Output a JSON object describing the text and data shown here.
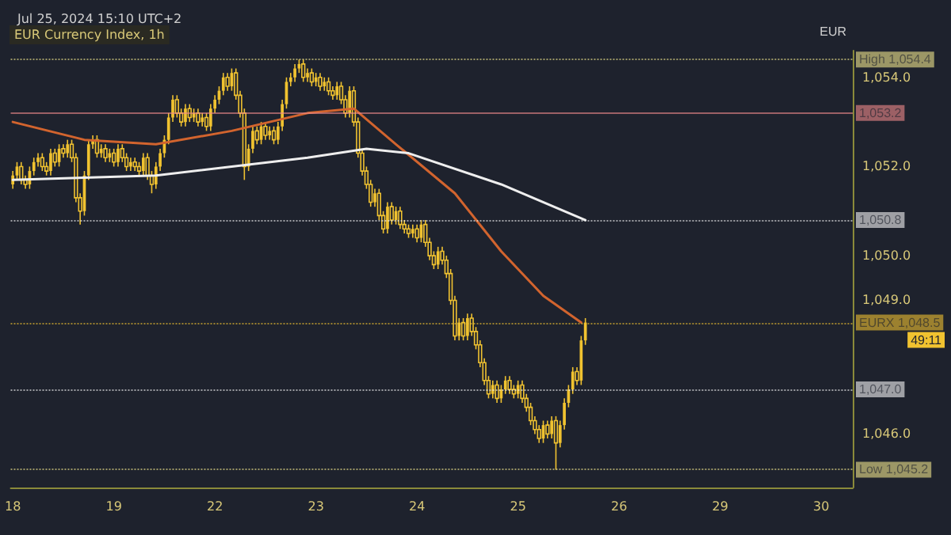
{
  "chart_data": {
    "type": "candlestick",
    "title": "EUR Currency Index, 1h",
    "subtitle": "Jul 25, 2024 15:10 UTC+2",
    "ylabel": "EUR",
    "categories": [
      "18",
      null,
      null,
      null,
      null,
      null,
      null,
      null,
      null,
      null,
      null,
      null,
      null,
      null,
      null,
      null,
      null,
      null,
      null,
      null,
      null,
      null,
      null,
      null,
      "19",
      null,
      null,
      null,
      null,
      null,
      null,
      null,
      null,
      null,
      null,
      null,
      null,
      null,
      null,
      null,
      null,
      null,
      null,
      null,
      null,
      null,
      null,
      null,
      "22",
      null,
      null,
      null,
      null,
      null,
      null,
      null,
      null,
      null,
      null,
      null,
      null,
      null,
      null,
      null,
      null,
      null,
      null,
      null,
      null,
      null,
      null,
      null,
      "23",
      null,
      null,
      null,
      null,
      null,
      null,
      null,
      null,
      null,
      null,
      null,
      null,
      null,
      null,
      null,
      null,
      null,
      null,
      null,
      null,
      null,
      null,
      null,
      "24",
      null,
      null,
      null,
      null,
      null,
      null,
      null,
      null,
      null,
      null,
      null,
      null,
      null,
      null,
      null,
      null,
      null,
      null,
      null,
      null,
      null,
      null,
      null,
      "25",
      null,
      null,
      null,
      null,
      null,
      null,
      null,
      null,
      null,
      null,
      null,
      null,
      null,
      null,
      null,
      null,
      null,
      null,
      null,
      null,
      null,
      null,
      null,
      "26",
      null,
      null,
      null,
      null,
      null,
      null,
      null,
      null,
      null,
      null,
      null,
      null,
      null,
      null,
      null,
      null,
      null,
      null,
      null,
      null,
      null,
      null,
      null,
      "29",
      null,
      null,
      null,
      null,
      null,
      null,
      null,
      null,
      null,
      null,
      null,
      null,
      null,
      null,
      null,
      null,
      null,
      null,
      null,
      null,
      null,
      null,
      null,
      "30",
      null,
      null,
      null,
      null,
      null,
      null,
      null
    ],
    "color": "#f0c230",
    "ohlc": [
      [
        1051.6,
        1051.9,
        1051.5,
        1051.8
      ],
      [
        1051.8,
        1052.1,
        1051.7,
        1052.0
      ],
      [
        1052.0,
        1052.1,
        1051.6,
        1051.7
      ],
      [
        1051.7,
        1051.8,
        1051.5,
        1051.6
      ],
      [
        1051.6,
        1052.0,
        1051.5,
        1051.9
      ],
      [
        1051.9,
        1052.2,
        1051.8,
        1052.1
      ],
      [
        1052.1,
        1052.3,
        1052.0,
        1052.2
      ],
      [
        1052.2,
        1052.3,
        1051.9,
        1052.0
      ],
      [
        1052.0,
        1052.1,
        1051.8,
        1051.9
      ],
      [
        1051.9,
        1052.4,
        1051.8,
        1052.3
      ],
      [
        1052.3,
        1052.4,
        1052.0,
        1052.1
      ],
      [
        1052.1,
        1052.5,
        1052.0,
        1052.4
      ],
      [
        1052.4,
        1052.5,
        1052.2,
        1052.3
      ],
      [
        1052.3,
        1052.6,
        1052.2,
        1052.5
      ],
      [
        1052.5,
        1052.6,
        1052.1,
        1052.2
      ],
      [
        1052.2,
        1052.3,
        1051.2,
        1051.3
      ],
      [
        1051.3,
        1051.4,
        1050.7,
        1051.0
      ],
      [
        1051.0,
        1051.9,
        1050.9,
        1051.8
      ],
      [
        1051.8,
        1052.6,
        1051.7,
        1052.5
      ],
      [
        1052.5,
        1052.7,
        1052.4,
        1052.6
      ],
      [
        1052.6,
        1052.7,
        1052.2,
        1052.3
      ],
      [
        1052.3,
        1052.5,
        1052.2,
        1052.4
      ],
      [
        1052.4,
        1052.5,
        1052.1,
        1052.2
      ],
      [
        1052.2,
        1052.4,
        1052.1,
        1052.3
      ],
      [
        1052.3,
        1052.4,
        1052.0,
        1052.1
      ],
      [
        1052.1,
        1052.5,
        1052.0,
        1052.4
      ],
      [
        1052.4,
        1052.5,
        1052.1,
        1052.2
      ],
      [
        1052.2,
        1052.3,
        1051.9,
        1052.0
      ],
      [
        1052.0,
        1052.2,
        1051.9,
        1052.1
      ],
      [
        1052.1,
        1052.2,
        1051.9,
        1052.0
      ],
      [
        1052.0,
        1052.1,
        1051.8,
        1051.9
      ],
      [
        1051.9,
        1052.3,
        1051.8,
        1052.2
      ],
      [
        1052.2,
        1052.3,
        1051.7,
        1051.8
      ],
      [
        1051.8,
        1051.9,
        1051.4,
        1051.6
      ],
      [
        1051.6,
        1052.1,
        1051.5,
        1052.0
      ],
      [
        1052.0,
        1052.4,
        1051.9,
        1052.3
      ],
      [
        1052.3,
        1052.7,
        1052.2,
        1052.6
      ],
      [
        1052.6,
        1053.2,
        1052.5,
        1053.1
      ],
      [
        1053.1,
        1053.6,
        1053.0,
        1053.5
      ],
      [
        1053.5,
        1053.6,
        1053.1,
        1053.2
      ],
      [
        1053.2,
        1053.3,
        1052.9,
        1053.0
      ],
      [
        1053.0,
        1053.4,
        1052.9,
        1053.3
      ],
      [
        1053.3,
        1053.4,
        1053.0,
        1053.1
      ],
      [
        1053.1,
        1053.3,
        1053.0,
        1053.2
      ],
      [
        1053.2,
        1053.3,
        1052.9,
        1053.0
      ],
      [
        1053.0,
        1053.2,
        1052.9,
        1053.1
      ],
      [
        1053.1,
        1053.2,
        1052.8,
        1052.9
      ],
      [
        1052.9,
        1053.4,
        1052.8,
        1053.3
      ],
      [
        1053.3,
        1053.6,
        1053.2,
        1053.5
      ],
      [
        1053.5,
        1053.8,
        1053.4,
        1053.7
      ],
      [
        1053.7,
        1054.1,
        1053.6,
        1054.0
      ],
      [
        1054.0,
        1054.1,
        1053.7,
        1053.8
      ],
      [
        1053.8,
        1054.2,
        1053.7,
        1054.1
      ],
      [
        1054.1,
        1054.2,
        1053.5,
        1053.6
      ],
      [
        1053.6,
        1053.7,
        1053.1,
        1053.2
      ],
      [
        1053.2,
        1053.3,
        1051.7,
        1052.0
      ],
      [
        1052.0,
        1052.5,
        1051.9,
        1052.4
      ],
      [
        1052.4,
        1052.9,
        1052.3,
        1052.8
      ],
      [
        1052.8,
        1052.9,
        1052.5,
        1052.6
      ],
      [
        1052.6,
        1053.0,
        1052.5,
        1052.9
      ],
      [
        1052.9,
        1053.0,
        1052.6,
        1052.7
      ],
      [
        1052.7,
        1052.9,
        1052.6,
        1052.8
      ],
      [
        1052.8,
        1052.9,
        1052.5,
        1052.6
      ],
      [
        1052.6,
        1053.0,
        1052.5,
        1052.9
      ],
      [
        1052.9,
        1053.5,
        1052.8,
        1053.4
      ],
      [
        1053.4,
        1054.0,
        1053.3,
        1053.9
      ],
      [
        1053.9,
        1054.1,
        1053.8,
        1054.0
      ],
      [
        1054.0,
        1054.3,
        1053.9,
        1054.2
      ],
      [
        1054.2,
        1054.4,
        1054.1,
        1054.3
      ],
      [
        1054.3,
        1054.4,
        1053.9,
        1054.0
      ],
      [
        1054.0,
        1054.2,
        1053.9,
        1054.1
      ],
      [
        1054.1,
        1054.2,
        1053.8,
        1053.9
      ],
      [
        1053.9,
        1054.1,
        1053.8,
        1054.0
      ],
      [
        1054.0,
        1054.1,
        1053.7,
        1053.8
      ],
      [
        1053.8,
        1054.0,
        1053.7,
        1053.9
      ],
      [
        1053.9,
        1054.0,
        1053.6,
        1053.7
      ],
      [
        1053.7,
        1053.8,
        1053.5,
        1053.6
      ],
      [
        1053.6,
        1053.9,
        1053.5,
        1053.8
      ],
      [
        1053.8,
        1053.9,
        1053.4,
        1053.5
      ],
      [
        1053.5,
        1053.6,
        1053.1,
        1053.2
      ],
      [
        1053.2,
        1053.8,
        1053.1,
        1053.7
      ],
      [
        1053.7,
        1053.8,
        1052.9,
        1053.0
      ],
      [
        1053.0,
        1053.1,
        1052.2,
        1052.3
      ],
      [
        1052.3,
        1052.4,
        1051.8,
        1051.9
      ],
      [
        1051.9,
        1052.0,
        1051.5,
        1051.6
      ],
      [
        1051.6,
        1051.7,
        1051.1,
        1051.2
      ],
      [
        1051.2,
        1051.5,
        1051.1,
        1051.4
      ],
      [
        1051.4,
        1051.5,
        1050.8,
        1050.9
      ],
      [
        1050.9,
        1051.0,
        1050.5,
        1050.6
      ],
      [
        1050.6,
        1051.2,
        1050.5,
        1051.1
      ],
      [
        1051.1,
        1051.2,
        1050.7,
        1050.8
      ],
      [
        1050.8,
        1051.1,
        1050.7,
        1051.0
      ],
      [
        1051.0,
        1051.1,
        1050.6,
        1050.7
      ],
      [
        1050.7,
        1050.8,
        1050.5,
        1050.6
      ],
      [
        1050.6,
        1050.7,
        1050.4,
        1050.5
      ],
      [
        1050.5,
        1050.7,
        1050.4,
        1050.6
      ],
      [
        1050.6,
        1050.7,
        1050.3,
        1050.4
      ],
      [
        1050.4,
        1050.8,
        1050.3,
        1050.7
      ],
      [
        1050.7,
        1050.8,
        1050.2,
        1050.3
      ],
      [
        1050.3,
        1050.4,
        1049.9,
        1050.0
      ],
      [
        1050.0,
        1050.1,
        1049.7,
        1049.8
      ],
      [
        1049.8,
        1050.2,
        1049.7,
        1050.1
      ],
      [
        1050.1,
        1050.2,
        1049.8,
        1049.9
      ],
      [
        1049.9,
        1050.0,
        1049.5,
        1049.6
      ],
      [
        1049.6,
        1049.7,
        1048.9,
        1049.0
      ],
      [
        1049.0,
        1049.1,
        1048.1,
        1048.2
      ],
      [
        1048.2,
        1048.6,
        1048.1,
        1048.5
      ],
      [
        1048.5,
        1048.6,
        1048.1,
        1048.2
      ],
      [
        1048.2,
        1048.7,
        1048.1,
        1048.6
      ],
      [
        1048.6,
        1048.7,
        1048.2,
        1048.3
      ],
      [
        1048.3,
        1048.4,
        1047.9,
        1048.0
      ],
      [
        1048.0,
        1048.1,
        1047.5,
        1047.6
      ],
      [
        1047.6,
        1047.7,
        1047.1,
        1047.2
      ],
      [
        1047.2,
        1047.3,
        1046.8,
        1046.9
      ],
      [
        1046.9,
        1047.2,
        1046.8,
        1047.1
      ],
      [
        1047.1,
        1047.2,
        1046.7,
        1046.8
      ],
      [
        1046.8,
        1047.1,
        1046.7,
        1047.0
      ],
      [
        1047.0,
        1047.3,
        1046.9,
        1047.2
      ],
      [
        1047.2,
        1047.3,
        1046.9,
        1047.0
      ],
      [
        1047.0,
        1047.1,
        1046.8,
        1046.9
      ],
      [
        1046.9,
        1047.2,
        1046.8,
        1047.1
      ],
      [
        1047.1,
        1047.2,
        1046.7,
        1046.8
      ],
      [
        1046.8,
        1046.9,
        1046.5,
        1046.6
      ],
      [
        1046.6,
        1046.7,
        1046.2,
        1046.3
      ],
      [
        1046.3,
        1046.4,
        1046.0,
        1046.1
      ],
      [
        1046.1,
        1046.2,
        1045.8,
        1045.9
      ],
      [
        1045.9,
        1046.3,
        1045.8,
        1046.2
      ],
      [
        1046.2,
        1046.3,
        1045.9,
        1046.0
      ],
      [
        1046.0,
        1046.4,
        1045.9,
        1046.3
      ],
      [
        1046.3,
        1046.4,
        1045.2,
        1045.8
      ],
      [
        1045.8,
        1046.3,
        1045.7,
        1046.2
      ],
      [
        1046.2,
        1046.8,
        1046.1,
        1046.7
      ],
      [
        1046.7,
        1047.1,
        1046.6,
        1047.0
      ],
      [
        1047.0,
        1047.5,
        1046.9,
        1047.4
      ],
      [
        1047.4,
        1047.5,
        1047.1,
        1047.2
      ],
      [
        1047.2,
        1048.2,
        1047.1,
        1048.1
      ],
      [
        1048.1,
        1048.6,
        1048.0,
        1048.5
      ],
      null,
      null,
      null,
      null,
      null,
      null,
      null,
      null,
      null,
      null,
      null,
      null,
      null,
      null,
      null,
      null,
      null,
      null,
      null,
      null,
      null,
      null,
      null,
      null,
      null,
      null,
      null,
      null,
      null,
      null,
      null,
      null,
      null,
      null,
      null,
      null,
      null,
      null,
      null,
      null,
      null,
      null,
      null,
      null,
      null,
      null,
      null,
      null,
      null,
      null,
      null,
      null,
      null,
      null,
      null,
      null,
      null,
      null,
      null,
      null,
      null,
      null,
      null
    ],
    "series": [
      {
        "type": "line",
        "color": "#d2642e",
        "values": [
          1053.0,
          null,
          null,
          null,
          null,
          null,
          null,
          null,
          null,
          null,
          null,
          null,
          null,
          null,
          null,
          null,
          null,
          1052.6,
          null,
          null,
          null,
          null,
          null,
          null,
          null,
          null,
          null,
          null,
          null,
          null,
          null,
          null,
          null,
          null,
          1052.5,
          null,
          null,
          null,
          null,
          null,
          null,
          null,
          null,
          null,
          null,
          null,
          null,
          null,
          null,
          null,
          null,
          null,
          1052.8,
          null,
          null,
          null,
          null,
          null,
          null,
          null,
          null,
          null,
          null,
          null,
          null,
          null,
          null,
          null,
          null,
          null,
          1053.2,
          null,
          null,
          null,
          null,
          null,
          null,
          null,
          null,
          null,
          null,
          1053.3,
          null,
          null,
          null,
          null,
          null,
          null,
          null,
          null,
          null,
          1052.5,
          null,
          null,
          null,
          null,
          null,
          null,
          null,
          null,
          null,
          null,
          null,
          null,
          null,
          1051.4,
          null,
          null,
          null,
          null,
          null,
          null,
          null,
          null,
          null,
          null,
          1050.1,
          null,
          null,
          null,
          null,
          null,
          null,
          null,
          null,
          null,
          1049.1,
          null,
          null,
          null,
          null,
          null,
          null,
          null,
          null,
          1048.5,
          null,
          null,
          null,
          null,
          null,
          null,
          null,
          null,
          null,
          null,
          null,
          null,
          null,
          null,
          null,
          null,
          null,
          null,
          null,
          null,
          null,
          null,
          null,
          null,
          null,
          null,
          null,
          null,
          null,
          null,
          null,
          null,
          null,
          null,
          null,
          null,
          null,
          null,
          null,
          null,
          null,
          null,
          null,
          null,
          null,
          null,
          null,
          null,
          null,
          null,
          null,
          null,
          null,
          null,
          null,
          null,
          null,
          null,
          null,
          null,
          null,
          null,
          null,
          null
        ]
      },
      {
        "type": "line",
        "color": "#eeeeee",
        "values": [
          1051.7,
          null,
          null,
          null,
          null,
          null,
          null,
          null,
          null,
          null,
          null,
          null,
          null,
          null,
          null,
          null,
          null,
          null,
          null,
          null,
          null,
          null,
          null,
          null,
          null,
          null,
          null,
          null,
          null,
          null,
          null,
          null,
          null,
          null,
          1051.8,
          null,
          null,
          null,
          null,
          null,
          null,
          null,
          null,
          null,
          null,
          null,
          null,
          null,
          null,
          null,
          null,
          null,
          1052.0,
          null,
          null,
          null,
          null,
          null,
          null,
          null,
          null,
          null,
          null,
          null,
          null,
          null,
          null,
          null,
          null,
          null,
          1052.2,
          null,
          null,
          null,
          null,
          null,
          null,
          null,
          null,
          null,
          null,
          null,
          null,
          null,
          1052.4,
          null,
          null,
          null,
          null,
          null,
          null,
          null,
          null,
          null,
          1052.3,
          null,
          null,
          null,
          null,
          null,
          null,
          null,
          null,
          null,
          null,
          null,
          null,
          null,
          null,
          null,
          null,
          null,
          null,
          null,
          null,
          null,
          1051.6,
          null,
          null,
          null,
          null,
          null,
          null,
          null,
          null,
          null,
          null,
          null,
          null,
          null,
          null,
          null,
          null,
          null,
          null,
          null,
          1050.8,
          null,
          null,
          null,
          null,
          null,
          null,
          null,
          null,
          null,
          null,
          null,
          null,
          null,
          null,
          null,
          null,
          null,
          null,
          null,
          null,
          null,
          null,
          null,
          null,
          null,
          null,
          null,
          null,
          null,
          null,
          null,
          null,
          null,
          null,
          null,
          null,
          null,
          null,
          null,
          null,
          null,
          null,
          null,
          null,
          null,
          null,
          null,
          null,
          null,
          null,
          null,
          null,
          null,
          null,
          null,
          null,
          null,
          null,
          null,
          null,
          null,
          null,
          null
        ]
      }
    ],
    "ylim": [
      1044.8,
      1054.6
    ],
    "yticks": [
      {
        "value": 1046,
        "label": "1,046.0"
      },
      {
        "value": 1049,
        "label": "1,049.0"
      },
      {
        "value": 1050,
        "label": "1,050.0"
      },
      {
        "value": 1052,
        "label": "1,052.0"
      },
      {
        "value": 1054,
        "label": "1,054.0"
      }
    ],
    "ref_lines": [
      {
        "axis": "y",
        "value": 1054.4,
        "label": "High 1,054.4",
        "color": "#f0e68c",
        "line_style": "dotted"
      },
      {
        "axis": "y",
        "value": 1053.2,
        "label": "1,053.2",
        "color": "#f08a8a",
        "line_style": "solid"
      },
      {
        "axis": "y",
        "value": 1050.8,
        "label": "1,050.8",
        "color": "#f5f5f5",
        "line_style": "dotted"
      },
      {
        "axis": "y",
        "value": 1048.5,
        "label": "EURX 1,048.5",
        "color": "#f0c230",
        "line_style": "dotted"
      },
      {
        "axis": "y",
        "value": 1047.0,
        "label": "1,047.0",
        "color": "#f5f5f5",
        "line_style": "dotted"
      },
      {
        "axis": "y",
        "value": 1045.2,
        "label": "Low 1,045.2",
        "color": "#f0e68c",
        "line_style": "dotted"
      }
    ],
    "annotations": [
      "49:11"
    ],
    "grid": false
  }
}
